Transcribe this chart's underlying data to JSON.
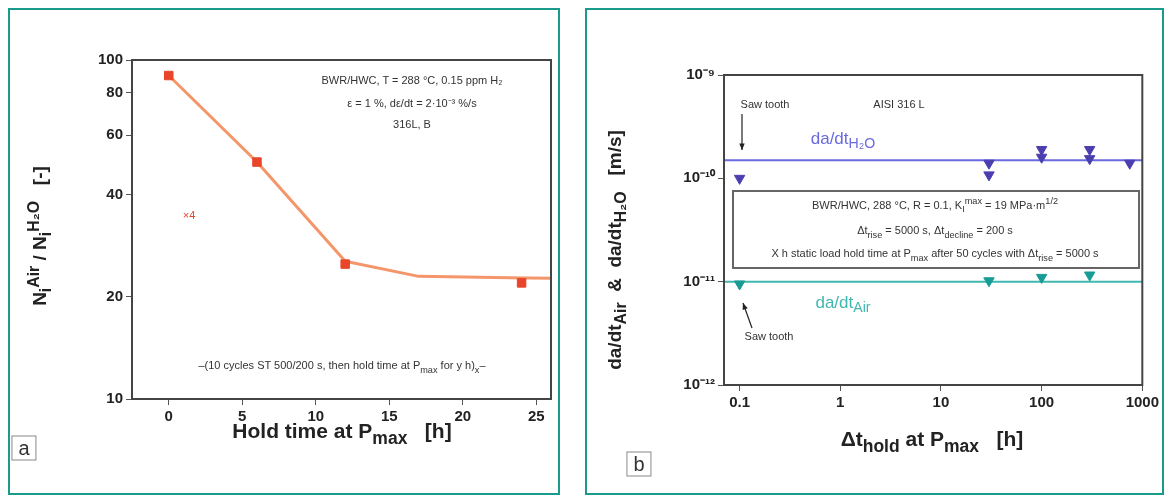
{
  "chart_data": [
    {
      "type": "scatter",
      "xlabel": "Hold time at P$_{max}$   [h]",
      "ylabel": "N$_{i}$$^{Air}$ / N$_{i}$$^{H₂O}$   [-]",
      "marker": "square",
      "log": "y",
      "xlim": [
        -2.5,
        26
      ],
      "ylim": [
        10,
        100
      ],
      "xticks": [
        0,
        5,
        10,
        15,
        20,
        25
      ],
      "yticks": [
        10,
        20,
        40,
        60,
        80,
        100
      ],
      "series": [
        {
          "color": "#e8452a",
          "x": [
            0,
            6,
            12,
            24
          ],
          "values": [
            90,
            50,
            25,
            22
          ]
        },
        {
          "type": "line",
          "marker": "none",
          "color": "#f4956a",
          "x": [
            0,
            6,
            12,
            17,
            26
          ],
          "values": [
            90,
            50,
            25.5,
            23,
            22.7
          ]
        }
      ],
      "annotations": [
        "a",
        "BWR/HWC, T = 288 °C, 0.15 ppm H₂",
        "ε = 1 %, dε/dt = 2·10⁻³ %/s",
        "316L, B",
        "×4",
        "–(10 cycles ST 500/200 s, then hold time at P$_{max}$ for y h)$_{x}$–"
      ]
    },
    {
      "type": "scatter",
      "xlabel": "Δt$_{hold}$ at P$_{max}$   [h]",
      "ylabel": "da/dt$_{Air}$  &  da/dt$_{H₂O}$   [m/s]",
      "marker": "triangle",
      "log": "xy",
      "xlim": [
        0.07,
        1000
      ],
      "ylim": [
        1e-12,
        1e-09
      ],
      "xticks": [
        0.1,
        1,
        10,
        100,
        1000
      ],
      "yticks": [
        {
          "value": 1e-12,
          "label": "10⁻¹²"
        },
        {
          "value": 1e-11,
          "label": "10⁻¹¹"
        },
        {
          "value": 1e-10,
          "label": "10⁻¹⁰"
        },
        {
          "value": 1e-09,
          "label": "10⁻⁹"
        }
      ],
      "series": [
        {
          "color": "#4b3fb0",
          "x": [
            0.1,
            30,
            30,
            100,
            100,
            300,
            300,
            750
          ],
          "values": [
            1e-10,
            1.4e-10,
            1.08e-10,
            1.9e-10,
            1.6e-10,
            1.9e-10,
            1.55e-10,
            1.4e-10
          ]
        },
        {
          "color": "#179c95",
          "x": [
            0.1,
            30,
            100,
            300
          ],
          "values": [
            9.5e-12,
            1.02e-11,
            1.1e-11,
            1.16e-11
          ]
        }
      ],
      "ref_lines": [
        {
          "axis": "y",
          "value": 1.5e-10,
          "label": "da/dt$_{H₂O}$",
          "color": "#6a6ae0"
        },
        {
          "axis": "y",
          "value": 1e-11,
          "label": "da/dt$_{Air}$",
          "color": "#40b8b0"
        }
      ],
      "annotations": [
        "b",
        "AISI 316 L",
        "Saw tooth",
        "Saw tooth",
        "BWR/HWC, 288 °C, R = 0.1, K$_{I}$$^{max}$ = 19 MPa·m$^{1/2}$",
        "Δt$_{rise}$ = 5000 s, Δt$_{decline}$ = 200 s",
        "X h static load hold time at P$_{max}$ after 50 cycles with Δt$_{rise}$ = 5000 s"
      ]
    }
  ]
}
